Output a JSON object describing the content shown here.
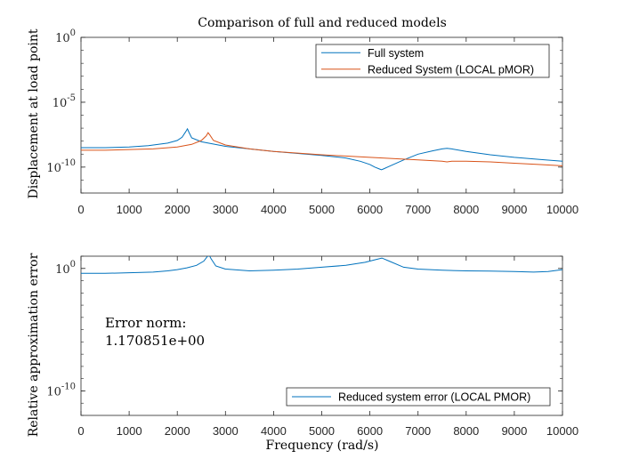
{
  "chart_data": [
    {
      "type": "line",
      "title": "Comparison of full and reduced models",
      "xlabel": "",
      "ylabel": "Displacement at load point",
      "xlim": [
        0,
        10000
      ],
      "ylim_log10": [
        -12,
        0
      ],
      "yscale": "log",
      "grid": false,
      "legend_placement": "top-right",
      "x_ticks": [
        "0",
        "1000",
        "2000",
        "3000",
        "4000",
        "5000",
        "6000",
        "7000",
        "8000",
        "9000",
        "10000"
      ],
      "y_ticks": [
        {
          "base": "10",
          "exp": "0",
          "value": 1
        },
        {
          "base": "10",
          "exp": "-5",
          "value": 1e-05
        },
        {
          "base": "10",
          "exp": "-10",
          "value": 1e-10
        }
      ],
      "series": [
        {
          "name": "Full system",
          "color": "#0072BD",
          "x": [
            0,
            500,
            1000,
            1400,
            1800,
            2000,
            2100,
            2180,
            2210,
            2240,
            2300,
            2500,
            3000,
            3500,
            4000,
            4500,
            5000,
            5500,
            5800,
            6000,
            6100,
            6200,
            6240,
            6280,
            6400,
            6700,
            7000,
            7300,
            7500,
            7600,
            7700,
            8000,
            8500,
            9000,
            9500,
            10000
          ],
          "y_log10": [
            -8.5,
            -8.5,
            -8.45,
            -8.35,
            -8.15,
            -7.95,
            -7.7,
            -7.25,
            -7.05,
            -7.3,
            -7.75,
            -8.05,
            -8.4,
            -8.6,
            -8.8,
            -8.95,
            -9.1,
            -9.3,
            -9.55,
            -9.8,
            -10.0,
            -10.15,
            -10.2,
            -10.15,
            -9.95,
            -9.45,
            -9.0,
            -8.75,
            -8.6,
            -8.55,
            -8.6,
            -8.8,
            -9.05,
            -9.25,
            -9.4,
            -9.55
          ]
        },
        {
          "name": "Reduced System (LOCAL pMOR)",
          "color": "#D95319",
          "x": [
            0,
            500,
            1000,
            1500,
            2000,
            2300,
            2500,
            2600,
            2640,
            2680,
            2750,
            3000,
            3500,
            4000,
            5000,
            6000,
            7000,
            7500,
            7600,
            7700,
            8000,
            8500,
            9000,
            9500,
            10000
          ],
          "y_log10": [
            -8.7,
            -8.7,
            -8.65,
            -8.6,
            -8.45,
            -8.25,
            -7.95,
            -7.6,
            -7.35,
            -7.55,
            -7.95,
            -8.3,
            -8.6,
            -8.8,
            -9.05,
            -9.25,
            -9.45,
            -9.55,
            -9.6,
            -9.55,
            -9.55,
            -9.6,
            -9.7,
            -9.8,
            -9.9
          ]
        }
      ]
    },
    {
      "type": "line",
      "title": "",
      "xlabel": "Frequency (rad/s)",
      "ylabel": "Relative approximation error",
      "xlim": [
        0,
        10000
      ],
      "ylim_log10": [
        -12,
        1
      ],
      "yscale": "log",
      "grid": false,
      "legend_placement": "bottom-right",
      "x_ticks": [
        "0",
        "1000",
        "2000",
        "3000",
        "4000",
        "5000",
        "6000",
        "7000",
        "8000",
        "9000",
        "10000"
      ],
      "y_ticks": [
        {
          "base": "10",
          "exp": "0",
          "value": 1
        },
        {
          "base": "10",
          "exp": "-10",
          "value": 1e-10
        }
      ],
      "annotation": [
        "Error norm:",
        "1.170851e+00"
      ],
      "series": [
        {
          "name": "Reduced system error (LOCAL PMOR)",
          "color": "#0072BD",
          "x": [
            0,
            500,
            1000,
            1500,
            1800,
            2000,
            2200,
            2400,
            2550,
            2620,
            2660,
            2700,
            2800,
            3000,
            3500,
            4000,
            4500,
            5000,
            5500,
            5900,
            6100,
            6250,
            6400,
            6700,
            7000,
            7500,
            8000,
            8500,
            9000,
            9400,
            9700,
            10000
          ],
          "y_log10": [
            -0.4,
            -0.4,
            -0.35,
            -0.3,
            -0.2,
            -0.1,
            0.05,
            0.25,
            0.6,
            0.95,
            1.1,
            0.8,
            0.2,
            -0.05,
            -0.2,
            -0.15,
            -0.05,
            0.1,
            0.25,
            0.5,
            0.7,
            0.85,
            0.6,
            0.1,
            -0.05,
            -0.15,
            -0.2,
            -0.22,
            -0.25,
            -0.3,
            -0.25,
            -0.1
          ]
        }
      ]
    }
  ]
}
